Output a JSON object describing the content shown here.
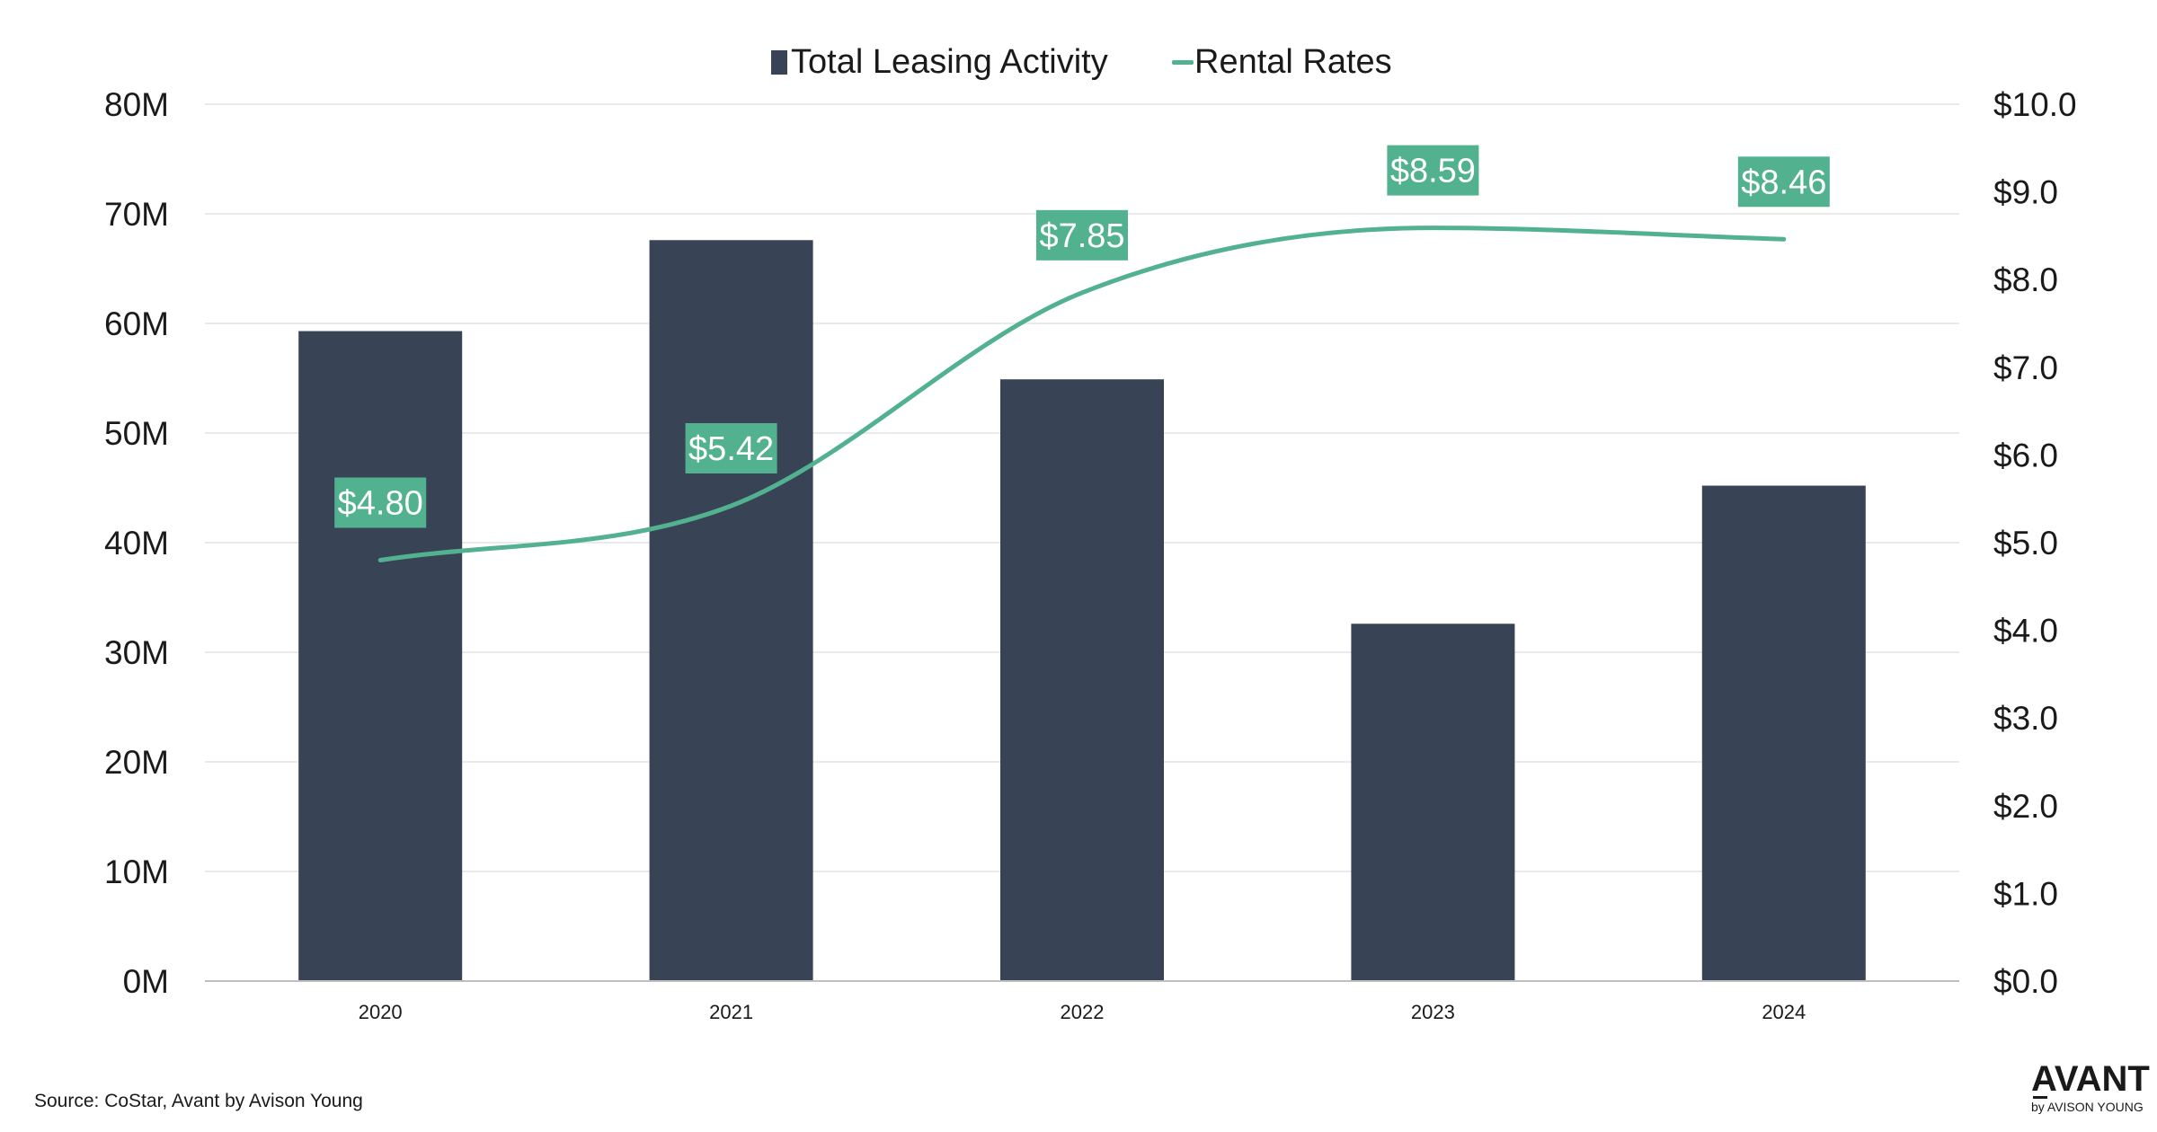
{
  "chart_data": {
    "type": "bar",
    "categories": [
      "2020",
      "2021",
      "2022",
      "2023",
      "2024"
    ],
    "series": [
      {
        "name": "Total Leasing Activity",
        "type": "bar",
        "axis": "left",
        "values": [
          59.3,
          67.6,
          54.9,
          32.6,
          45.2
        ]
      },
      {
        "name": "Rental Rates",
        "type": "line",
        "axis": "right",
        "values": [
          4.8,
          5.42,
          7.85,
          8.59,
          8.46
        ],
        "labels": [
          "$4.80",
          "$5.42",
          "$7.85",
          "$8.59",
          "$8.46"
        ]
      }
    ],
    "y_left": {
      "ylim": [
        0,
        80
      ],
      "ticks": [
        "0M",
        "10M",
        "20M",
        "30M",
        "40M",
        "50M",
        "60M",
        "70M",
        "80M"
      ]
    },
    "y_right": {
      "ylim": [
        0,
        10
      ],
      "ticks": [
        "$0.0",
        "$1.0",
        "$2.0",
        "$3.0",
        "$4.0",
        "$5.0",
        "$6.0",
        "$7.0",
        "$8.0",
        "$9.0",
        "$10.0"
      ]
    },
    "grid": true,
    "legend_position": "top-center",
    "colors": {
      "bar": "#384356",
      "line": "#52b28f",
      "grid": "#e4e4e4",
      "axis": "#bfbfbf"
    }
  },
  "footer": {
    "source": "Source: CoStar, Avant by Avison Young"
  },
  "logo": {
    "main": "AVANT",
    "sub": "by AVISON YOUNG"
  }
}
